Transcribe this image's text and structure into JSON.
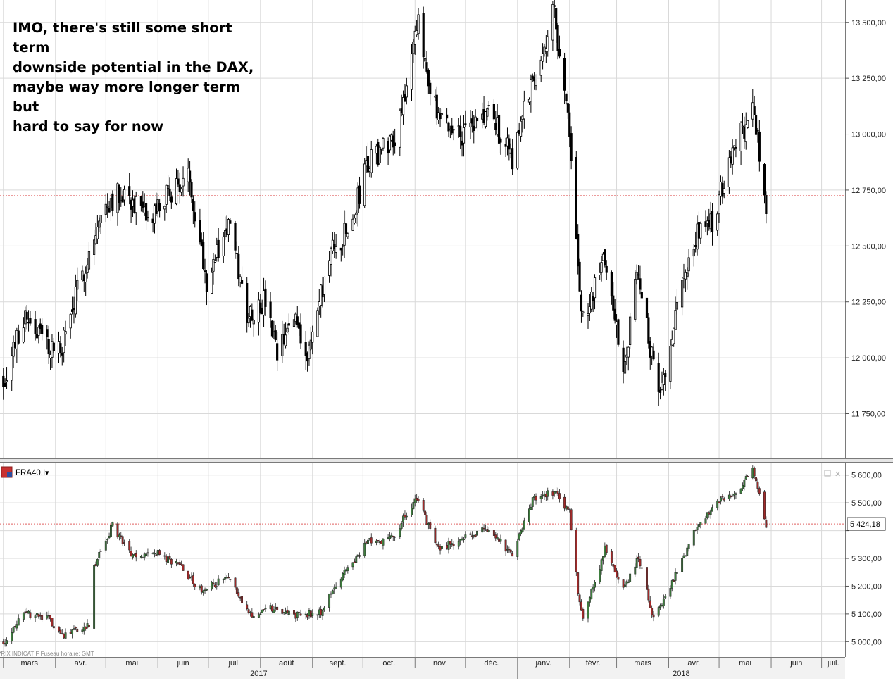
{
  "annotation": "IMO, there's still some short term\ndownside potential in the DAX,\nmaybe way more longer term but\nhard to say for now",
  "months": [
    "mars",
    "avr.",
    "mai",
    "juin",
    "juil.",
    "août",
    "sept.",
    "oct.",
    "nov.",
    "déc.",
    "janv.",
    "févr.",
    "mars",
    "avr.",
    "mai",
    "juin",
    "juil."
  ],
  "years": [
    "2017",
    "2018"
  ],
  "lower_panel": {
    "symbol": "FRA40.I",
    "dropdown_glyph": "▾",
    "footer_text": "PRIX INDICATIF   Fuseau horaire: GMT"
  },
  "colors": {
    "up": "#3f7f3f",
    "down": "#a32a2a",
    "upper_candle": "#000000",
    "grid": "#d9d9d9",
    "ref_line": "#e06060"
  },
  "chart_data": [
    {
      "type": "candlestick",
      "name_note": "upper panel (DAX as per annotation)",
      "y_ticks": [
        11750,
        12000,
        12250,
        12500,
        12750,
        13000,
        13250,
        13500
      ],
      "y_tick_labels": [
        "11 750,00",
        "12 000,00",
        "12 250,00",
        "12 500,00",
        "12 750,00",
        "13 000,00",
        "13 250,00",
        "13 500,00"
      ],
      "ylim": [
        11550,
        13600
      ],
      "reference_level": 12725,
      "x_start": "2017-02-27",
      "x_end": "2018-07-15",
      "last_date": "2018-05-29",
      "closes_checkpoints": [
        {
          "date": "2017-03-01",
          "close": 11900
        },
        {
          "date": "2017-03-14",
          "close": 12200
        },
        {
          "date": "2017-03-28",
          "close": 12050
        },
        {
          "date": "2017-04-04",
          "close": 12030
        },
        {
          "date": "2017-04-20",
          "close": 12450
        },
        {
          "date": "2017-05-02",
          "close": 12700
        },
        {
          "date": "2017-05-12",
          "close": 12750
        },
        {
          "date": "2017-05-26",
          "close": 12600
        },
        {
          "date": "2017-06-09",
          "close": 12750
        },
        {
          "date": "2017-06-20",
          "close": 12800
        },
        {
          "date": "2017-06-30",
          "close": 12350
        },
        {
          "date": "2017-07-13",
          "close": 12600
        },
        {
          "date": "2017-07-24",
          "close": 12200
        },
        {
          "date": "2017-08-04",
          "close": 12250
        },
        {
          "date": "2017-08-11",
          "close": 12000
        },
        {
          "date": "2017-08-22",
          "close": 12200
        },
        {
          "date": "2017-08-29",
          "close": 12000
        },
        {
          "date": "2017-09-11",
          "close": 12450
        },
        {
          "date": "2017-09-25",
          "close": 12600
        },
        {
          "date": "2017-10-02",
          "close": 12850
        },
        {
          "date": "2017-10-20",
          "close": 13000
        },
        {
          "date": "2017-10-27",
          "close": 13230
        },
        {
          "date": "2017-11-03",
          "close": 13480
        },
        {
          "date": "2017-11-15",
          "close": 13050
        },
        {
          "date": "2017-12-01",
          "close": 13000
        },
        {
          "date": "2017-12-15",
          "close": 13100
        },
        {
          "date": "2017-12-29",
          "close": 12900
        },
        {
          "date": "2018-01-10",
          "close": 13250
        },
        {
          "date": "2018-01-23",
          "close": 13550
        },
        {
          "date": "2018-02-01",
          "close": 13000
        },
        {
          "date": "2018-02-06",
          "close": 12400
        },
        {
          "date": "2018-02-09",
          "close": 12150
        },
        {
          "date": "2018-02-22",
          "close": 12450
        },
        {
          "date": "2018-03-05",
          "close": 11950
        },
        {
          "date": "2018-03-14",
          "close": 12400
        },
        {
          "date": "2018-03-26",
          "close": 11800
        },
        {
          "date": "2018-04-06",
          "close": 12250
        },
        {
          "date": "2018-04-18",
          "close": 12550
        },
        {
          "date": "2018-04-27",
          "close": 12600
        },
        {
          "date": "2018-05-09",
          "close": 12950
        },
        {
          "date": "2018-05-22",
          "close": 13100
        },
        {
          "date": "2018-05-29",
          "close": 12650
        }
      ]
    },
    {
      "type": "candlestick",
      "series_name": "FRA40.I",
      "y_ticks": [
        5000,
        5100,
        5200,
        5300,
        5400,
        5500,
        5600
      ],
      "y_tick_labels": [
        "5 000,00",
        "5 100,00",
        "5 200,00",
        "5 300,00",
        "",
        "5 500,00",
        "5 600,00"
      ],
      "ylim": [
        4945,
        5645
      ],
      "last_value": 5424.18,
      "last_value_label": "5 424,18",
      "x_start": "2017-02-27",
      "x_end": "2018-07-15",
      "last_date": "2018-05-29",
      "closes_checkpoints": [
        {
          "date": "2017-03-01",
          "close": 5000
        },
        {
          "date": "2017-03-14",
          "close": 5100
        },
        {
          "date": "2017-03-28",
          "close": 5080
        },
        {
          "date": "2017-04-07",
          "close": 5020
        },
        {
          "date": "2017-04-21",
          "close": 5060
        },
        {
          "date": "2017-04-24",
          "close": 5270
        },
        {
          "date": "2017-05-05",
          "close": 5420
        },
        {
          "date": "2017-05-17",
          "close": 5300
        },
        {
          "date": "2017-05-31",
          "close": 5320
        },
        {
          "date": "2017-06-14",
          "close": 5270
        },
        {
          "date": "2017-06-27",
          "close": 5180
        },
        {
          "date": "2017-07-12",
          "close": 5230
        },
        {
          "date": "2017-07-26",
          "close": 5100
        },
        {
          "date": "2017-08-09",
          "close": 5120
        },
        {
          "date": "2017-08-25",
          "close": 5090
        },
        {
          "date": "2017-09-06",
          "close": 5110
        },
        {
          "date": "2017-09-20",
          "close": 5250
        },
        {
          "date": "2017-10-04",
          "close": 5360
        },
        {
          "date": "2017-10-18",
          "close": 5370
        },
        {
          "date": "2017-11-02",
          "close": 5520
        },
        {
          "date": "2017-11-15",
          "close": 5330
        },
        {
          "date": "2017-12-01",
          "close": 5380
        },
        {
          "date": "2017-12-15",
          "close": 5410
        },
        {
          "date": "2017-12-29",
          "close": 5310
        },
        {
          "date": "2018-01-10",
          "close": 5510
        },
        {
          "date": "2018-01-23",
          "close": 5540
        },
        {
          "date": "2018-02-01",
          "close": 5470
        },
        {
          "date": "2018-02-06",
          "close": 5180
        },
        {
          "date": "2018-02-09",
          "close": 5090
        },
        {
          "date": "2018-02-22",
          "close": 5330
        },
        {
          "date": "2018-03-05",
          "close": 5190
        },
        {
          "date": "2018-03-14",
          "close": 5300
        },
        {
          "date": "2018-03-23",
          "close": 5080
        },
        {
          "date": "2018-04-06",
          "close": 5250
        },
        {
          "date": "2018-04-18",
          "close": 5420
        },
        {
          "date": "2018-04-30",
          "close": 5510
        },
        {
          "date": "2018-05-11",
          "close": 5540
        },
        {
          "date": "2018-05-21",
          "close": 5620
        },
        {
          "date": "2018-05-29",
          "close": 5424
        }
      ]
    }
  ]
}
